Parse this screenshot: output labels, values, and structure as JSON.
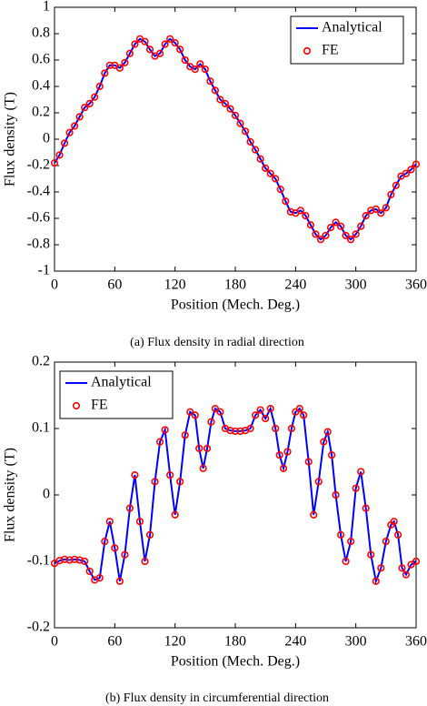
{
  "chart_data": [
    {
      "type": "line",
      "xlabel": "Position (Mech. Deg.)",
      "ylabel": "Flux density (T)",
      "caption": "(a) Flux density in radial direction",
      "x": [
        0,
        5,
        10,
        15,
        20,
        25,
        30,
        35,
        40,
        45,
        50,
        55,
        60,
        65,
        70,
        75,
        80,
        85,
        90,
        95,
        100,
        105,
        110,
        115,
        120,
        125,
        130,
        135,
        140,
        145,
        150,
        155,
        160,
        165,
        170,
        175,
        180,
        185,
        190,
        195,
        200,
        205,
        210,
        215,
        220,
        225,
        230,
        235,
        240,
        245,
        250,
        255,
        260,
        265,
        270,
        275,
        280,
        285,
        290,
        295,
        300,
        305,
        310,
        315,
        320,
        325,
        330,
        335,
        340,
        345,
        350,
        355,
        360
      ],
      "series": [
        {
          "name": "Analytical",
          "color": "#0000ff",
          "style": "line",
          "values": [
            -0.18,
            -0.12,
            -0.03,
            0.05,
            0.1,
            0.17,
            0.24,
            0.27,
            0.32,
            0.4,
            0.5,
            0.56,
            0.56,
            0.54,
            0.58,
            0.65,
            0.72,
            0.76,
            0.74,
            0.68,
            0.63,
            0.65,
            0.72,
            0.76,
            0.73,
            0.68,
            0.6,
            0.55,
            0.53,
            0.57,
            0.53,
            0.44,
            0.37,
            0.3,
            0.27,
            0.23,
            0.18,
            0.12,
            0.06,
            -0.02,
            -0.08,
            -0.15,
            -0.22,
            -0.26,
            -0.3,
            -0.38,
            -0.47,
            -0.55,
            -0.56,
            -0.54,
            -0.58,
            -0.65,
            -0.72,
            -0.76,
            -0.73,
            -0.67,
            -0.63,
            -0.66,
            -0.73,
            -0.76,
            -0.72,
            -0.66,
            -0.58,
            -0.54,
            -0.53,
            -0.56,
            -0.52,
            -0.42,
            -0.35,
            -0.28,
            -0.26,
            -0.23,
            -0.19
          ]
        },
        {
          "name": "FE",
          "color": "#ff0000",
          "style": "marker",
          "values": [
            -0.18,
            -0.12,
            -0.03,
            0.05,
            0.1,
            0.17,
            0.24,
            0.27,
            0.32,
            0.4,
            0.5,
            0.56,
            0.56,
            0.54,
            0.58,
            0.65,
            0.72,
            0.76,
            0.74,
            0.68,
            0.63,
            0.65,
            0.72,
            0.76,
            0.73,
            0.68,
            0.6,
            0.55,
            0.53,
            0.57,
            0.53,
            0.44,
            0.37,
            0.3,
            0.27,
            0.23,
            0.18,
            0.12,
            0.06,
            -0.02,
            -0.08,
            -0.15,
            -0.22,
            -0.26,
            -0.3,
            -0.38,
            -0.47,
            -0.55,
            -0.56,
            -0.54,
            -0.58,
            -0.65,
            -0.72,
            -0.76,
            -0.73,
            -0.67,
            -0.63,
            -0.66,
            -0.73,
            -0.76,
            -0.72,
            -0.66,
            -0.58,
            -0.54,
            -0.53,
            -0.56,
            -0.52,
            -0.42,
            -0.35,
            -0.28,
            -0.26,
            -0.23,
            -0.19
          ]
        }
      ],
      "xlim": [
        0,
        360
      ],
      "xticks": [
        0,
        60,
        120,
        180,
        240,
        300,
        360
      ],
      "ylim": [
        -1,
        1
      ],
      "yticks": [
        1,
        0.8,
        0.6,
        0.4,
        0.2,
        0,
        -0.2,
        -0.4,
        -0.6,
        -0.8,
        -1
      ],
      "legend": "upper right"
    },
    {
      "type": "line",
      "xlabel": "Position (Mech. Deg.)",
      "ylabel": "Flux density (T)",
      "caption": "(b) Flux density in circumferential direction",
      "x": [
        0,
        5,
        10,
        15,
        20,
        25,
        30,
        35,
        40,
        45,
        50,
        55,
        60,
        65,
        70,
        75,
        80,
        85,
        90,
        95,
        100,
        105,
        110,
        115,
        120,
        125,
        130,
        135,
        140,
        144,
        148,
        152,
        156,
        160,
        165,
        170,
        175,
        180,
        185,
        190,
        195,
        200,
        205,
        210,
        215,
        220,
        224,
        228,
        232,
        236,
        240,
        244,
        248,
        253,
        258,
        263,
        268,
        272,
        276,
        280,
        285,
        290,
        295,
        300,
        305,
        310,
        315,
        320,
        325,
        330,
        335,
        338,
        342,
        346,
        350,
        355,
        360
      ],
      "series": [
        {
          "name": "Analytical",
          "color": "#0000ff",
          "style": "line",
          "values": [
            -0.103,
            -0.099,
            -0.097,
            -0.098,
            -0.097,
            -0.098,
            -0.1,
            -0.115,
            -0.128,
            -0.125,
            -0.07,
            -0.04,
            -0.08,
            -0.13,
            -0.09,
            -0.02,
            0.03,
            -0.04,
            -0.1,
            -0.06,
            0.02,
            0.08,
            0.098,
            0.03,
            -0.03,
            0.02,
            0.09,
            0.125,
            0.12,
            0.07,
            0.04,
            0.07,
            0.11,
            0.13,
            0.125,
            0.1,
            0.097,
            0.096,
            0.096,
            0.097,
            0.1,
            0.12,
            0.128,
            0.115,
            0.13,
            0.1,
            0.06,
            0.04,
            0.065,
            0.1,
            0.125,
            0.13,
            0.12,
            0.05,
            -0.03,
            0.02,
            0.08,
            0.095,
            0.06,
            0,
            -0.06,
            -0.1,
            -0.07,
            0.01,
            0.035,
            -0.02,
            -0.09,
            -0.13,
            -0.11,
            -0.07,
            -0.045,
            -0.04,
            -0.06,
            -0.11,
            -0.12,
            -0.105,
            -0.1
          ]
        },
        {
          "name": "FE",
          "color": "#ff0000",
          "style": "marker",
          "values": [
            -0.103,
            -0.099,
            -0.097,
            -0.098,
            -0.097,
            -0.098,
            -0.1,
            -0.115,
            -0.128,
            -0.125,
            -0.07,
            -0.04,
            -0.08,
            -0.13,
            -0.09,
            -0.02,
            0.03,
            -0.04,
            -0.1,
            -0.06,
            0.02,
            0.08,
            0.098,
            0.03,
            -0.03,
            0.02,
            0.09,
            0.125,
            0.12,
            0.07,
            0.04,
            0.07,
            0.11,
            0.13,
            0.125,
            0.1,
            0.097,
            0.096,
            0.096,
            0.097,
            0.1,
            0.12,
            0.128,
            0.115,
            0.13,
            0.1,
            0.06,
            0.04,
            0.065,
            0.1,
            0.125,
            0.13,
            0.12,
            0.05,
            -0.03,
            0.02,
            0.08,
            0.095,
            0.06,
            0,
            -0.06,
            -0.1,
            -0.07,
            0.01,
            0.035,
            -0.02,
            -0.09,
            -0.13,
            -0.11,
            -0.07,
            -0.045,
            -0.04,
            -0.06,
            -0.11,
            -0.12,
            -0.105,
            -0.1
          ]
        }
      ],
      "xlim": [
        0,
        360
      ],
      "xticks": [
        0,
        60,
        120,
        180,
        240,
        300,
        360
      ],
      "ylim": [
        -0.2,
        0.2
      ],
      "yticks": [
        0.2,
        0.1,
        0,
        -0.1,
        -0.2
      ],
      "legend": "upper left"
    }
  ]
}
